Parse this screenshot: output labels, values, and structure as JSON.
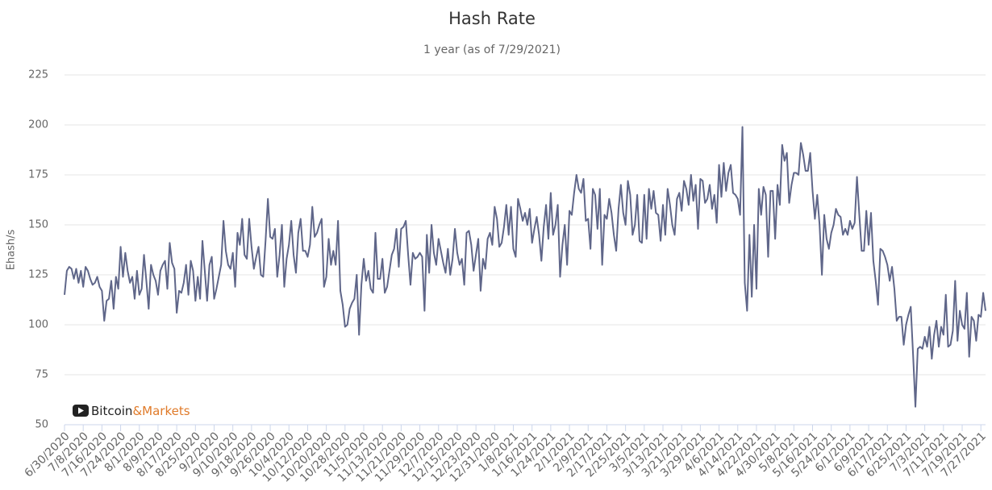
{
  "chart_data": {
    "type": "line",
    "title": "Hash Rate",
    "subtitle": "1 year (as of 7/29/2021)",
    "y_label": "Ehash/s",
    "watermark": {
      "brand": "Bitcoin",
      "suffix": "&Markets"
    },
    "color": "#5f6689",
    "grid": true,
    "ylim": [
      50,
      225
    ],
    "yticks": [
      50,
      75,
      100,
      125,
      150,
      175,
      200,
      225
    ],
    "categories": [
      "6/30/2020",
      null,
      null,
      null,
      null,
      null,
      null,
      null,
      "7/8/2020",
      null,
      null,
      null,
      null,
      null,
      null,
      null,
      "7/16/2020",
      null,
      null,
      null,
      null,
      null,
      null,
      null,
      "7/24/2020",
      null,
      null,
      null,
      null,
      null,
      null,
      null,
      "8/1/2020",
      null,
      null,
      null,
      null,
      null,
      null,
      null,
      "8/9/2020",
      null,
      null,
      null,
      null,
      null,
      null,
      null,
      "8/17/2020",
      null,
      null,
      null,
      null,
      null,
      null,
      null,
      "8/25/2020",
      null,
      null,
      null,
      null,
      null,
      null,
      null,
      "9/2/2020",
      null,
      null,
      null,
      null,
      null,
      null,
      null,
      "9/10/2020",
      null,
      null,
      null,
      null,
      null,
      null,
      null,
      "9/18/2020",
      null,
      null,
      null,
      null,
      null,
      null,
      null,
      "9/26/2020",
      null,
      null,
      null,
      null,
      null,
      null,
      null,
      "10/4/2020",
      null,
      null,
      null,
      null,
      null,
      null,
      null,
      "10/12/2020",
      null,
      null,
      null,
      null,
      null,
      null,
      null,
      "10/20/2020",
      null,
      null,
      null,
      null,
      null,
      null,
      null,
      "10/28/2020",
      null,
      null,
      null,
      null,
      null,
      null,
      null,
      "11/5/2020",
      null,
      null,
      null,
      null,
      null,
      null,
      null,
      "11/13/2020",
      null,
      null,
      null,
      null,
      null,
      null,
      null,
      "11/21/2020",
      null,
      null,
      null,
      null,
      null,
      null,
      null,
      "11/29/2020",
      null,
      null,
      null,
      null,
      null,
      null,
      null,
      "12/7/2020",
      null,
      null,
      null,
      null,
      null,
      null,
      null,
      "12/15/2020",
      null,
      null,
      null,
      null,
      null,
      null,
      null,
      "12/23/2020",
      null,
      null,
      null,
      null,
      null,
      null,
      null,
      "12/31/2020",
      null,
      null,
      null,
      null,
      null,
      null,
      null,
      "1/8/2021",
      null,
      null,
      null,
      null,
      null,
      null,
      null,
      "1/16/2021",
      null,
      null,
      null,
      null,
      null,
      null,
      null,
      "1/24/2021",
      null,
      null,
      null,
      null,
      null,
      null,
      null,
      "2/1/2021",
      null,
      null,
      null,
      null,
      null,
      null,
      null,
      "2/9/2021",
      null,
      null,
      null,
      null,
      null,
      null,
      null,
      "2/17/2021",
      null,
      null,
      null,
      null,
      null,
      null,
      null,
      "2/25/2021",
      null,
      null,
      null,
      null,
      null,
      null,
      null,
      "3/5/2021",
      null,
      null,
      null,
      null,
      null,
      null,
      null,
      "3/13/2021",
      null,
      null,
      null,
      null,
      null,
      null,
      null,
      "3/21/2021",
      null,
      null,
      null,
      null,
      null,
      null,
      null,
      "3/29/2021",
      null,
      null,
      null,
      null,
      null,
      null,
      null,
      "4/6/2021",
      null,
      null,
      null,
      null,
      null,
      null,
      null,
      "4/14/2021",
      null,
      null,
      null,
      null,
      null,
      null,
      null,
      "4/22/2021",
      null,
      null,
      null,
      null,
      null,
      null,
      null,
      "4/30/2021",
      null,
      null,
      null,
      null,
      null,
      null,
      null,
      "5/8/2021",
      null,
      null,
      null,
      null,
      null,
      null,
      null,
      "5/16/2021",
      null,
      null,
      null,
      null,
      null,
      null,
      null,
      "5/24/2021",
      null,
      null,
      null,
      null,
      null,
      null,
      null,
      "6/1/2021",
      null,
      null,
      null,
      null,
      null,
      null,
      null,
      "6/9/2021",
      null,
      null,
      null,
      null,
      null,
      null,
      null,
      "6/17/2021",
      null,
      null,
      null,
      null,
      null,
      null,
      null,
      "6/25/2021",
      null,
      null,
      null,
      null,
      null,
      null,
      null,
      "7/3/2021",
      null,
      null,
      null,
      null,
      null,
      null,
      null,
      "7/11/2021",
      null,
      null,
      null,
      null,
      null,
      null,
      null,
      "7/19/2021",
      null,
      null,
      null,
      null,
      null,
      null,
      null,
      "7/27/2021",
      null,
      null
    ],
    "values": [
      115,
      127,
      129,
      128,
      123,
      128,
      121,
      127,
      119,
      129,
      127,
      123,
      120,
      121,
      124,
      119,
      117,
      102,
      112,
      113,
      122,
      108,
      124,
      118,
      139,
      124,
      136,
      127,
      121,
      124,
      113,
      127,
      115,
      118,
      135,
      122,
      108,
      130,
      125,
      122,
      115,
      127,
      130,
      132,
      118,
      141,
      131,
      128,
      106,
      117,
      116,
      121,
      130,
      115,
      132,
      127,
      112,
      124,
      113,
      142,
      127,
      112,
      130,
      134,
      113,
      118,
      124,
      130,
      152,
      137,
      130,
      128,
      136,
      119,
      146,
      140,
      153,
      135,
      133,
      153,
      139,
      128,
      134,
      139,
      125,
      124,
      142,
      163,
      144,
      143,
      148,
      124,
      135,
      150,
      119,
      133,
      140,
      152,
      135,
      126,
      146,
      153,
      137,
      137,
      134,
      140,
      159,
      144,
      146,
      150,
      153,
      119,
      124,
      143,
      130,
      137,
      130,
      152,
      117,
      110,
      99,
      100,
      108,
      111,
      113,
      125,
      95,
      120,
      133,
      122,
      127,
      118,
      116,
      146,
      123,
      123,
      133,
      116,
      119,
      127,
      135,
      138,
      148,
      129,
      148,
      149,
      152,
      135,
      120,
      136,
      133,
      134,
      136,
      134,
      107,
      145,
      126,
      150,
      136,
      130,
      143,
      137,
      131,
      126,
      138,
      125,
      133,
      148,
      136,
      130,
      133,
      120,
      146,
      147,
      140,
      127,
      135,
      143,
      117,
      133,
      128,
      143,
      146,
      140,
      159,
      153,
      139,
      141,
      149,
      160,
      145,
      159,
      138,
      134,
      163,
      158,
      152,
      156,
      150,
      158,
      141,
      148,
      154,
      145,
      132,
      149,
      160,
      143,
      166,
      145,
      150,
      160,
      124,
      140,
      150,
      130,
      157,
      155,
      166,
      175,
      168,
      166,
      173,
      152,
      153,
      138,
      168,
      165,
      148,
      168,
      130,
      155,
      153,
      163,
      156,
      145,
      137,
      158,
      170,
      156,
      150,
      172,
      165,
      145,
      150,
      165,
      142,
      141,
      165,
      143,
      168,
      158,
      167,
      156,
      155,
      142,
      160,
      145,
      168,
      160,
      150,
      145,
      163,
      166,
      157,
      172,
      168,
      160,
      175,
      162,
      170,
      148,
      173,
      172,
      161,
      163,
      170,
      158,
      165,
      151,
      180,
      164,
      181,
      167,
      176,
      180,
      166,
      165,
      163,
      155,
      199,
      121,
      107,
      145,
      114,
      150,
      118,
      168,
      155,
      169,
      165,
      134,
      167,
      167,
      143,
      170,
      160,
      190,
      182,
      186,
      161,
      170,
      176,
      176,
      175,
      191,
      185,
      177,
      177,
      186,
      167,
      153,
      165,
      150,
      125,
      155,
      143,
      138,
      146,
      150,
      158,
      155,
      154,
      145,
      148,
      145,
      152,
      148,
      151,
      174,
      155,
      137,
      137,
      157,
      140,
      156,
      132,
      122,
      110,
      138,
      137,
      134,
      130,
      122,
      129,
      118,
      102,
      104,
      104,
      90,
      100,
      105,
      109,
      85,
      59,
      88,
      89,
      88,
      94,
      89,
      99,
      83,
      95,
      102,
      89,
      99,
      95,
      115,
      89,
      90,
      97,
      122,
      92,
      107,
      100,
      98,
      116,
      84,
      104,
      102,
      92,
      105,
      104,
      116,
      107
    ]
  }
}
